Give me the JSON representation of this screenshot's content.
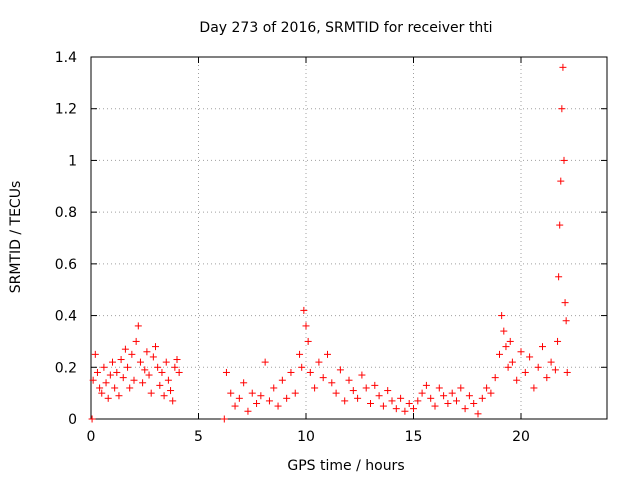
{
  "chart_data": {
    "type": "scatter",
    "title": "Day 273 of 2016, SRMTID for receiver thti",
    "xlabel": "GPS time / hours",
    "ylabel": "SRMTID / TECUs",
    "xlim": [
      0,
      24
    ],
    "ylim": [
      0,
      1.4
    ],
    "x_ticks": [
      0,
      5,
      10,
      15,
      20
    ],
    "x_tick_labels": [
      "0",
      "5",
      "10",
      "15",
      "20"
    ],
    "y_ticks": [
      0,
      0.2,
      0.4,
      0.6,
      0.8,
      1.0,
      1.2,
      1.4
    ],
    "y_tick_labels": [
      "0",
      "0.2",
      "0.4",
      "0.6",
      "0.8",
      "1",
      "1.2",
      "1.4"
    ],
    "grid": true,
    "marker": "+",
    "marker_color": "#ff0000",
    "series": [
      {
        "name": "SRMTID",
        "x": [
          0.05,
          0.1,
          0.2,
          0.3,
          0.4,
          0.5,
          0.6,
          0.7,
          0.8,
          0.9,
          1.0,
          1.1,
          1.2,
          1.3,
          1.4,
          1.5,
          1.6,
          1.7,
          1.8,
          1.9,
          2.0,
          2.1,
          2.2,
          2.3,
          2.4,
          2.5,
          2.6,
          2.7,
          2.8,
          2.9,
          3.0,
          3.1,
          3.2,
          3.3,
          3.4,
          3.5,
          3.6,
          3.7,
          3.8,
          3.9,
          4.0,
          4.1,
          6.2,
          6.3,
          6.5,
          6.7,
          6.9,
          7.1,
          7.3,
          7.5,
          7.7,
          7.9,
          8.1,
          8.3,
          8.5,
          8.7,
          8.9,
          9.1,
          9.3,
          9.5,
          9.7,
          9.8,
          9.9,
          10.0,
          10.1,
          10.2,
          10.4,
          10.6,
          10.8,
          11.0,
          11.2,
          11.4,
          11.6,
          11.8,
          12.0,
          12.2,
          12.4,
          12.6,
          12.8,
          13.0,
          13.2,
          13.4,
          13.6,
          13.8,
          14.0,
          14.2,
          14.4,
          14.6,
          14.8,
          15.0,
          15.2,
          15.4,
          15.6,
          15.8,
          16.0,
          16.2,
          16.4,
          16.6,
          16.8,
          17.0,
          17.2,
          17.4,
          17.6,
          17.8,
          18.0,
          18.2,
          18.4,
          18.6,
          18.8,
          19.0,
          19.1,
          19.2,
          19.3,
          19.4,
          19.5,
          19.6,
          19.8,
          20.0,
          20.2,
          20.4,
          20.6,
          20.8,
          21.0,
          21.2,
          21.4,
          21.6,
          21.7,
          21.75,
          21.8,
          21.85,
          21.9,
          21.95,
          22.0,
          22.05,
          22.1,
          22.15
        ],
        "y": [
          0.0,
          0.15,
          0.25,
          0.18,
          0.12,
          0.1,
          0.2,
          0.14,
          0.08,
          0.17,
          0.22,
          0.12,
          0.18,
          0.09,
          0.23,
          0.16,
          0.27,
          0.2,
          0.12,
          0.25,
          0.15,
          0.3,
          0.36,
          0.22,
          0.14,
          0.19,
          0.26,
          0.17,
          0.1,
          0.24,
          0.28,
          0.2,
          0.13,
          0.18,
          0.09,
          0.22,
          0.15,
          0.11,
          0.07,
          0.2,
          0.23,
          0.18,
          0.0,
          0.18,
          0.1,
          0.05,
          0.08,
          0.14,
          0.03,
          0.1,
          0.06,
          0.09,
          0.22,
          0.07,
          0.12,
          0.05,
          0.15,
          0.08,
          0.18,
          0.1,
          0.25,
          0.2,
          0.42,
          0.36,
          0.3,
          0.18,
          0.12,
          0.22,
          0.16,
          0.25,
          0.14,
          0.1,
          0.19,
          0.07,
          0.15,
          0.11,
          0.08,
          0.17,
          0.12,
          0.06,
          0.13,
          0.09,
          0.05,
          0.11,
          0.07,
          0.04,
          0.08,
          0.03,
          0.06,
          0.04,
          0.07,
          0.1,
          0.13,
          0.08,
          0.05,
          0.12,
          0.09,
          0.06,
          0.1,
          0.07,
          0.12,
          0.04,
          0.09,
          0.06,
          0.02,
          0.08,
          0.12,
          0.1,
          0.16,
          0.25,
          0.4,
          0.34,
          0.28,
          0.2,
          0.3,
          0.22,
          0.15,
          0.26,
          0.18,
          0.24,
          0.12,
          0.2,
          0.28,
          0.16,
          0.22,
          0.19,
          0.3,
          0.55,
          0.75,
          0.92,
          1.2,
          1.36,
          1.0,
          0.45,
          0.38,
          0.18
        ],
        "color": "#ff0000"
      }
    ]
  }
}
